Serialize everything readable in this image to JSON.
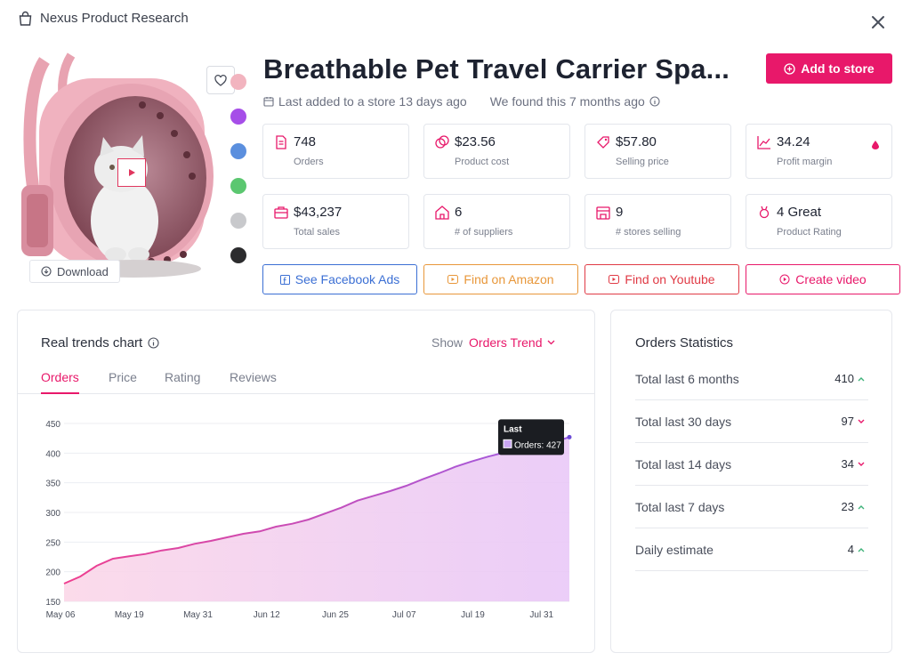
{
  "app": {
    "brand": "Nexus Product Research"
  },
  "product": {
    "title": "Breathable Pet Travel Carrier Spa...",
    "last_added": "Last added to a store 13 days ago",
    "found": "We found this 7 months ago",
    "download_label": "Download",
    "add_to_store_label": "Add to store",
    "swatches": [
      "#f2b4bf",
      "#a64ee8",
      "#5b8fde",
      "#5bc770",
      "#c8c9cc",
      "#2c2c2e"
    ]
  },
  "stats": [
    {
      "value": "748",
      "label": "Orders",
      "icon": "document-icon"
    },
    {
      "value": "$23.56",
      "label": "Product cost",
      "icon": "coins-icon"
    },
    {
      "value": "$57.80",
      "label": "Selling price",
      "icon": "tag-icon"
    },
    {
      "value": "34.24",
      "label": "Profit margin",
      "icon": "trend-icon"
    },
    {
      "value": "$43,237",
      "label": "Total sales",
      "icon": "briefcase-icon"
    },
    {
      "value": "6",
      "label": "# of suppliers",
      "icon": "house-icon"
    },
    {
      "value": "9",
      "label": "# stores selling",
      "icon": "store-icon"
    },
    {
      "value": "4 Great",
      "label": "Product Rating",
      "icon": "award-icon"
    }
  ],
  "actions": [
    {
      "label": "See Facebook Ads",
      "color": "#3b6fd4"
    },
    {
      "label": "Find on Amazon",
      "color": "#e8973a"
    },
    {
      "label": "Find on Youtube",
      "color": "#e03a45"
    },
    {
      "label": "Create video",
      "color": "#e8186a"
    }
  ],
  "trends": {
    "title": "Real trends chart",
    "show_label": "Show",
    "show_value": "Orders Trend",
    "tabs": [
      "Orders",
      "Price",
      "Rating",
      "Reviews"
    ],
    "active_tab": 0
  },
  "chart_data": {
    "type": "area",
    "ylim": [
      150,
      450
    ],
    "yticks": [
      150,
      200,
      250,
      300,
      350,
      400,
      450
    ],
    "xticks": [
      "May 06",
      "May 19",
      "May 31",
      "Jun 12",
      "Jun 25",
      "Jul 07",
      "Jul 19",
      "Jul 31"
    ],
    "x": [
      "May 06",
      "May 08",
      "May 10",
      "May 12",
      "May 14",
      "May 16",
      "May 19",
      "May 22",
      "May 25",
      "May 28",
      "May 31",
      "Jun 03",
      "Jun 06",
      "Jun 09",
      "Jun 12",
      "Jun 15",
      "Jun 18",
      "Jun 21",
      "Jun 25",
      "Jun 28",
      "Jul 01",
      "Jul 04",
      "Jul 07",
      "Jul 10",
      "Jul 13",
      "Jul 16",
      "Jul 19",
      "Jul 22",
      "Jul 25",
      "Jul 28",
      "Jul 31",
      "Aug 02"
    ],
    "series": [
      {
        "values": [
          180,
          192,
          210,
          222,
          226,
          230,
          236,
          240,
          247,
          252,
          258,
          264,
          268,
          276,
          281,
          288,
          298,
          308,
          320,
          328,
          336,
          345,
          356,
          366,
          377,
          386,
          394,
          401,
          405,
          410,
          418,
          427
        ]
      }
    ],
    "tooltip": {
      "title": "Last",
      "label": "Orders: 427"
    },
    "colors": {
      "start": "#ef3f8f",
      "end": "#9b5de5"
    }
  },
  "orders_statistics": {
    "title": "Orders Statistics",
    "rows": [
      {
        "label": "Total last 6 months",
        "value": "410",
        "trend": "up"
      },
      {
        "label": "Total last 30 days",
        "value": "97",
        "trend": "down"
      },
      {
        "label": "Total last 14 days",
        "value": "34",
        "trend": "down"
      },
      {
        "label": "Total last 7 days",
        "value": "23",
        "trend": "up"
      },
      {
        "label": "Daily estimate",
        "value": "4",
        "trend": "up"
      }
    ]
  }
}
